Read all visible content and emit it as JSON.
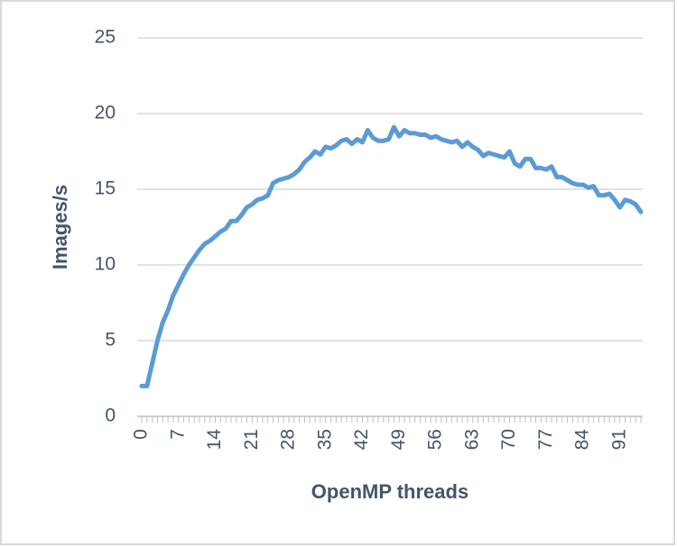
{
  "chart_data": {
    "type": "line",
    "x_label": "OpenMP threads",
    "y_label": "Images/s",
    "x": [
      0,
      1,
      2,
      3,
      4,
      5,
      6,
      7,
      8,
      9,
      10,
      11,
      12,
      13,
      14,
      15,
      16,
      17,
      18,
      19,
      20,
      21,
      22,
      23,
      24,
      25,
      26,
      27,
      28,
      29,
      30,
      31,
      32,
      33,
      34,
      35,
      36,
      37,
      38,
      39,
      40,
      41,
      42,
      43,
      44,
      45,
      46,
      47,
      48,
      49,
      50,
      51,
      52,
      53,
      54,
      55,
      56,
      57,
      58,
      59,
      60,
      61,
      62,
      63,
      64,
      65,
      66,
      67,
      68,
      69,
      70,
      71,
      72,
      73,
      74,
      75,
      76,
      77,
      78,
      79,
      80,
      81,
      82,
      83,
      84,
      85,
      86,
      87,
      88,
      89,
      90,
      91,
      92,
      93,
      94,
      95
    ],
    "series": [
      {
        "name": "Images/s",
        "color": "#5b9bd5",
        "values": [
          2.0,
          2.0,
          3.5,
          5.0,
          6.2,
          7.0,
          8.0,
          8.7,
          9.4,
          10.0,
          10.5,
          11.0,
          11.4,
          11.6,
          11.9,
          12.2,
          12.4,
          12.9,
          12.9,
          13.3,
          13.8,
          14.0,
          14.3,
          14.4,
          14.6,
          15.4,
          15.6,
          15.7,
          15.8,
          16.0,
          16.3,
          16.8,
          17.1,
          17.5,
          17.3,
          17.8,
          17.7,
          17.9,
          18.2,
          18.3,
          18.0,
          18.3,
          18.1,
          18.9,
          18.4,
          18.2,
          18.2,
          18.3,
          19.1,
          18.5,
          18.9,
          18.7,
          18.7,
          18.6,
          18.6,
          18.4,
          18.5,
          18.3,
          18.2,
          18.1,
          18.2,
          17.8,
          18.1,
          17.8,
          17.6,
          17.2,
          17.4,
          17.3,
          17.2,
          17.1,
          17.5,
          16.7,
          16.5,
          17.0,
          17.0,
          16.4,
          16.4,
          16.3,
          16.5,
          15.8,
          15.8,
          15.6,
          15.4,
          15.3,
          15.3,
          15.1,
          15.2,
          14.6,
          14.6,
          14.7,
          14.3,
          13.8,
          14.3,
          14.2,
          14.0,
          13.5
        ]
      }
    ],
    "xlim": [
      0,
      95
    ],
    "xticks": [
      0,
      7,
      14,
      21,
      28,
      35,
      42,
      49,
      56,
      63,
      70,
      77,
      84,
      91
    ],
    "ylim": [
      0,
      25
    ],
    "yticks": [
      0,
      5,
      10,
      15,
      20,
      25
    ],
    "grid": true
  }
}
